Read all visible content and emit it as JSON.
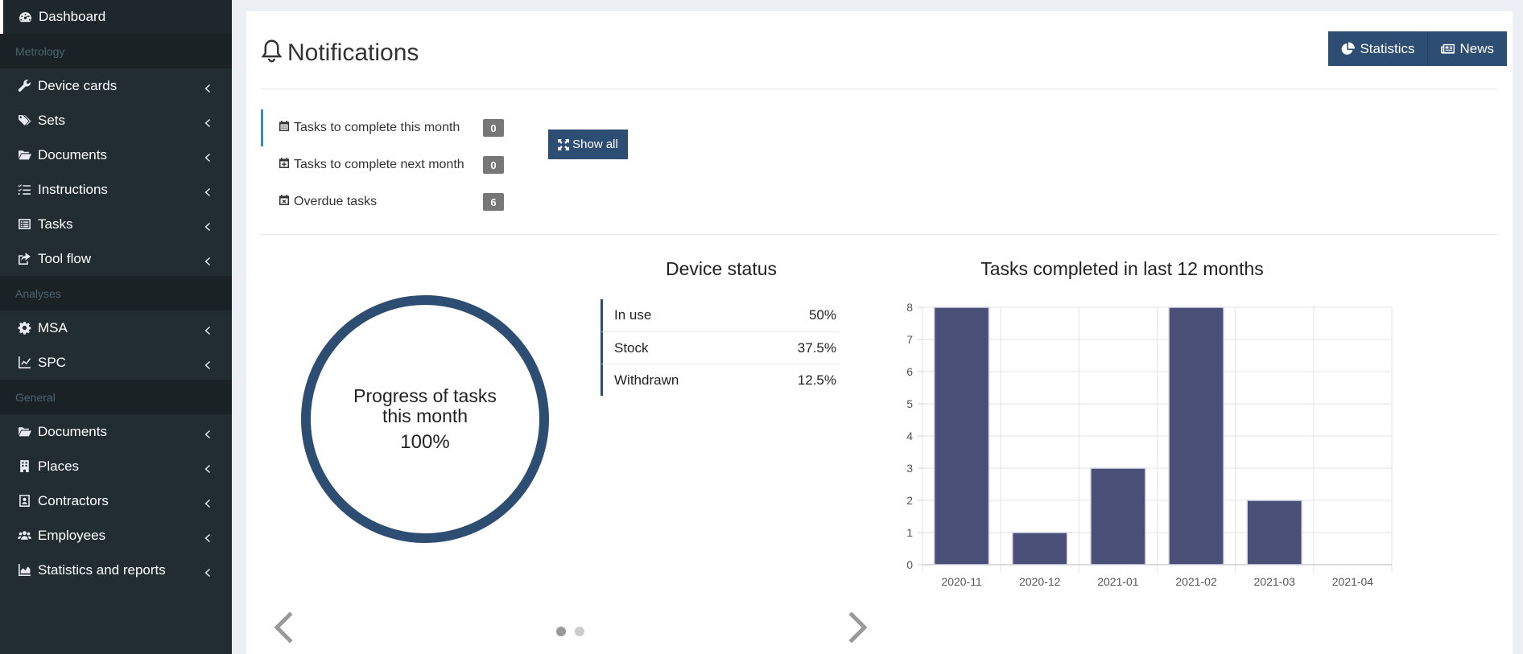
{
  "sidebar": {
    "dashboard": "Dashboard",
    "sections": [
      {
        "header": "Metrology",
        "items": [
          "Device cards",
          "Sets",
          "Documents",
          "Instructions",
          "Tasks",
          "Tool flow"
        ]
      },
      {
        "header": "Analyses",
        "items": [
          "MSA",
          "SPC"
        ]
      },
      {
        "header": "General",
        "items": [
          "Documents",
          "Places",
          "Contractors",
          "Employees",
          "Statistics and reports"
        ]
      }
    ]
  },
  "header": {
    "title": "Notifications",
    "statistics_label": "Statistics",
    "news_label": "News"
  },
  "tasks": {
    "items": [
      {
        "label": "Tasks to complete this month",
        "count": "0"
      },
      {
        "label": "Tasks to complete next month",
        "count": "0"
      },
      {
        "label": "Overdue tasks",
        "count": "6"
      }
    ],
    "show_all_label": "Show all"
  },
  "progress": {
    "line1": "Progress of tasks",
    "line2": "this month",
    "value": 100,
    "value_label": "100%"
  },
  "device_status": {
    "title": "Device status",
    "rows": [
      {
        "label": "In use",
        "value": "50%"
      },
      {
        "label": "Stock",
        "value": "37.5%"
      },
      {
        "label": "Withdrawn",
        "value": "12.5%"
      }
    ]
  },
  "chart_data": {
    "type": "bar",
    "title": "Tasks completed in last 12 months",
    "categories": [
      "2020-11",
      "2020-12",
      "2021-01",
      "2021-02",
      "2021-03",
      "2021-04"
    ],
    "values": [
      8,
      1,
      3,
      8,
      2,
      0
    ],
    "ylim": [
      0,
      8
    ],
    "yticks": [
      0,
      1,
      2,
      3,
      4,
      5,
      6,
      7,
      8
    ],
    "grid": true,
    "bar_color": "#4a4f78"
  },
  "colors": {
    "sidebar_bg": "#222d32",
    "accent": "#2e4d73"
  },
  "carousel": {
    "pages": 2,
    "current": 0
  }
}
